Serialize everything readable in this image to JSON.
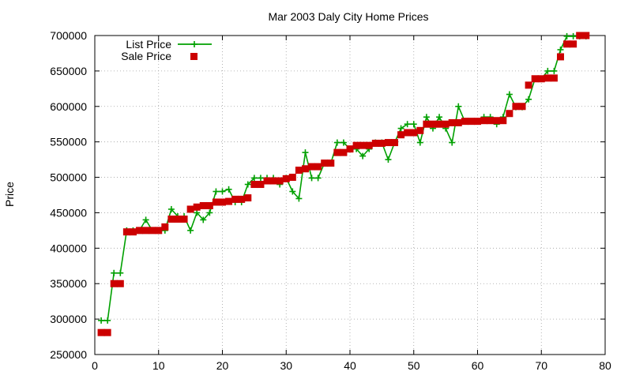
{
  "chart_data": {
    "type": "line",
    "title": "Mar 2003 Daly City Home Prices",
    "xlabel": "",
    "ylabel": "Price",
    "xlim": [
      0,
      80
    ],
    "ylim": [
      250000,
      700000
    ],
    "xticks": [
      0,
      10,
      20,
      30,
      40,
      50,
      60,
      70,
      80
    ],
    "yticks": [
      250000,
      300000,
      350000,
      400000,
      450000,
      500000,
      550000,
      600000,
      650000,
      700000
    ],
    "grid": true,
    "legend_position": "top-left",
    "colors": {
      "list": "#00a000",
      "sale": "#cc0000"
    },
    "series": [
      {
        "name": "List Price",
        "style": "line-points",
        "x": [
          1,
          2,
          3,
          4,
          5,
          6,
          7,
          8,
          9,
          10,
          11,
          12,
          13,
          14,
          15,
          16,
          17,
          18,
          19,
          20,
          21,
          22,
          23,
          24,
          25,
          26,
          27,
          28,
          29,
          30,
          31,
          32,
          33,
          34,
          35,
          36,
          37,
          38,
          39,
          40,
          41,
          42,
          43,
          44,
          45,
          46,
          47,
          48,
          49,
          50,
          51,
          52,
          53,
          54,
          55,
          56,
          57,
          58,
          59,
          60,
          61,
          62,
          63,
          64,
          65,
          66,
          67,
          68,
          69,
          70,
          71,
          72,
          73,
          74,
          75,
          76,
          77
        ],
        "values": [
          298000,
          298000,
          365000,
          365000,
          425000,
          425000,
          425000,
          440000,
          425000,
          425000,
          425000,
          455000,
          445000,
          445000,
          425000,
          450000,
          440000,
          450000,
          480000,
          480000,
          483000,
          465000,
          465000,
          490000,
          499000,
          499000,
          499000,
          499000,
          490000,
          499000,
          480000,
          470000,
          535000,
          499000,
          499000,
          520000,
          520000,
          549000,
          549000,
          540000,
          540000,
          530000,
          540000,
          549000,
          549000,
          525000,
          549000,
          569000,
          575000,
          575000,
          549000,
          585000,
          569000,
          585000,
          569000,
          549000,
          600000,
          579000,
          579000,
          579000,
          585000,
          585000,
          575000,
          585000,
          617000,
          599000,
          599000,
          610000,
          639000,
          639000,
          650000,
          650000,
          680000,
          699000,
          699000,
          699000,
          699000
        ]
      },
      {
        "name": "Sale Price",
        "style": "points",
        "x": [
          1,
          2,
          3,
          4,
          5,
          6,
          7,
          8,
          9,
          10,
          11,
          12,
          13,
          14,
          15,
          16,
          17,
          18,
          19,
          20,
          21,
          22,
          23,
          24,
          25,
          26,
          27,
          28,
          29,
          30,
          31,
          32,
          33,
          34,
          35,
          36,
          37,
          38,
          39,
          40,
          41,
          42,
          43,
          44,
          45,
          46,
          47,
          48,
          49,
          50,
          51,
          52,
          53,
          54,
          55,
          56,
          57,
          58,
          59,
          60,
          61,
          62,
          63,
          64,
          65,
          66,
          67,
          68,
          69,
          70,
          71,
          72,
          73,
          74,
          75,
          76,
          77
        ],
        "values": [
          281000,
          281000,
          350000,
          350000,
          423000,
          423000,
          425000,
          425000,
          425000,
          425000,
          430000,
          441000,
          441000,
          441000,
          455000,
          458000,
          460000,
          460000,
          465000,
          465000,
          466000,
          469000,
          469000,
          471000,
          490000,
          490000,
          495000,
          495000,
          495000,
          498000,
          500000,
          510000,
          512000,
          515000,
          515000,
          520000,
          520000,
          535000,
          535000,
          540000,
          545000,
          545000,
          545000,
          548000,
          548000,
          549000,
          549000,
          560000,
          563000,
          563000,
          566000,
          575000,
          575000,
          575000,
          575000,
          577000,
          577000,
          579000,
          579000,
          579000,
          580000,
          580000,
          580000,
          580000,
          590000,
          600000,
          600000,
          630000,
          639000,
          639000,
          640000,
          640000,
          670000,
          688000,
          688000,
          700000,
          700000
        ]
      }
    ]
  }
}
